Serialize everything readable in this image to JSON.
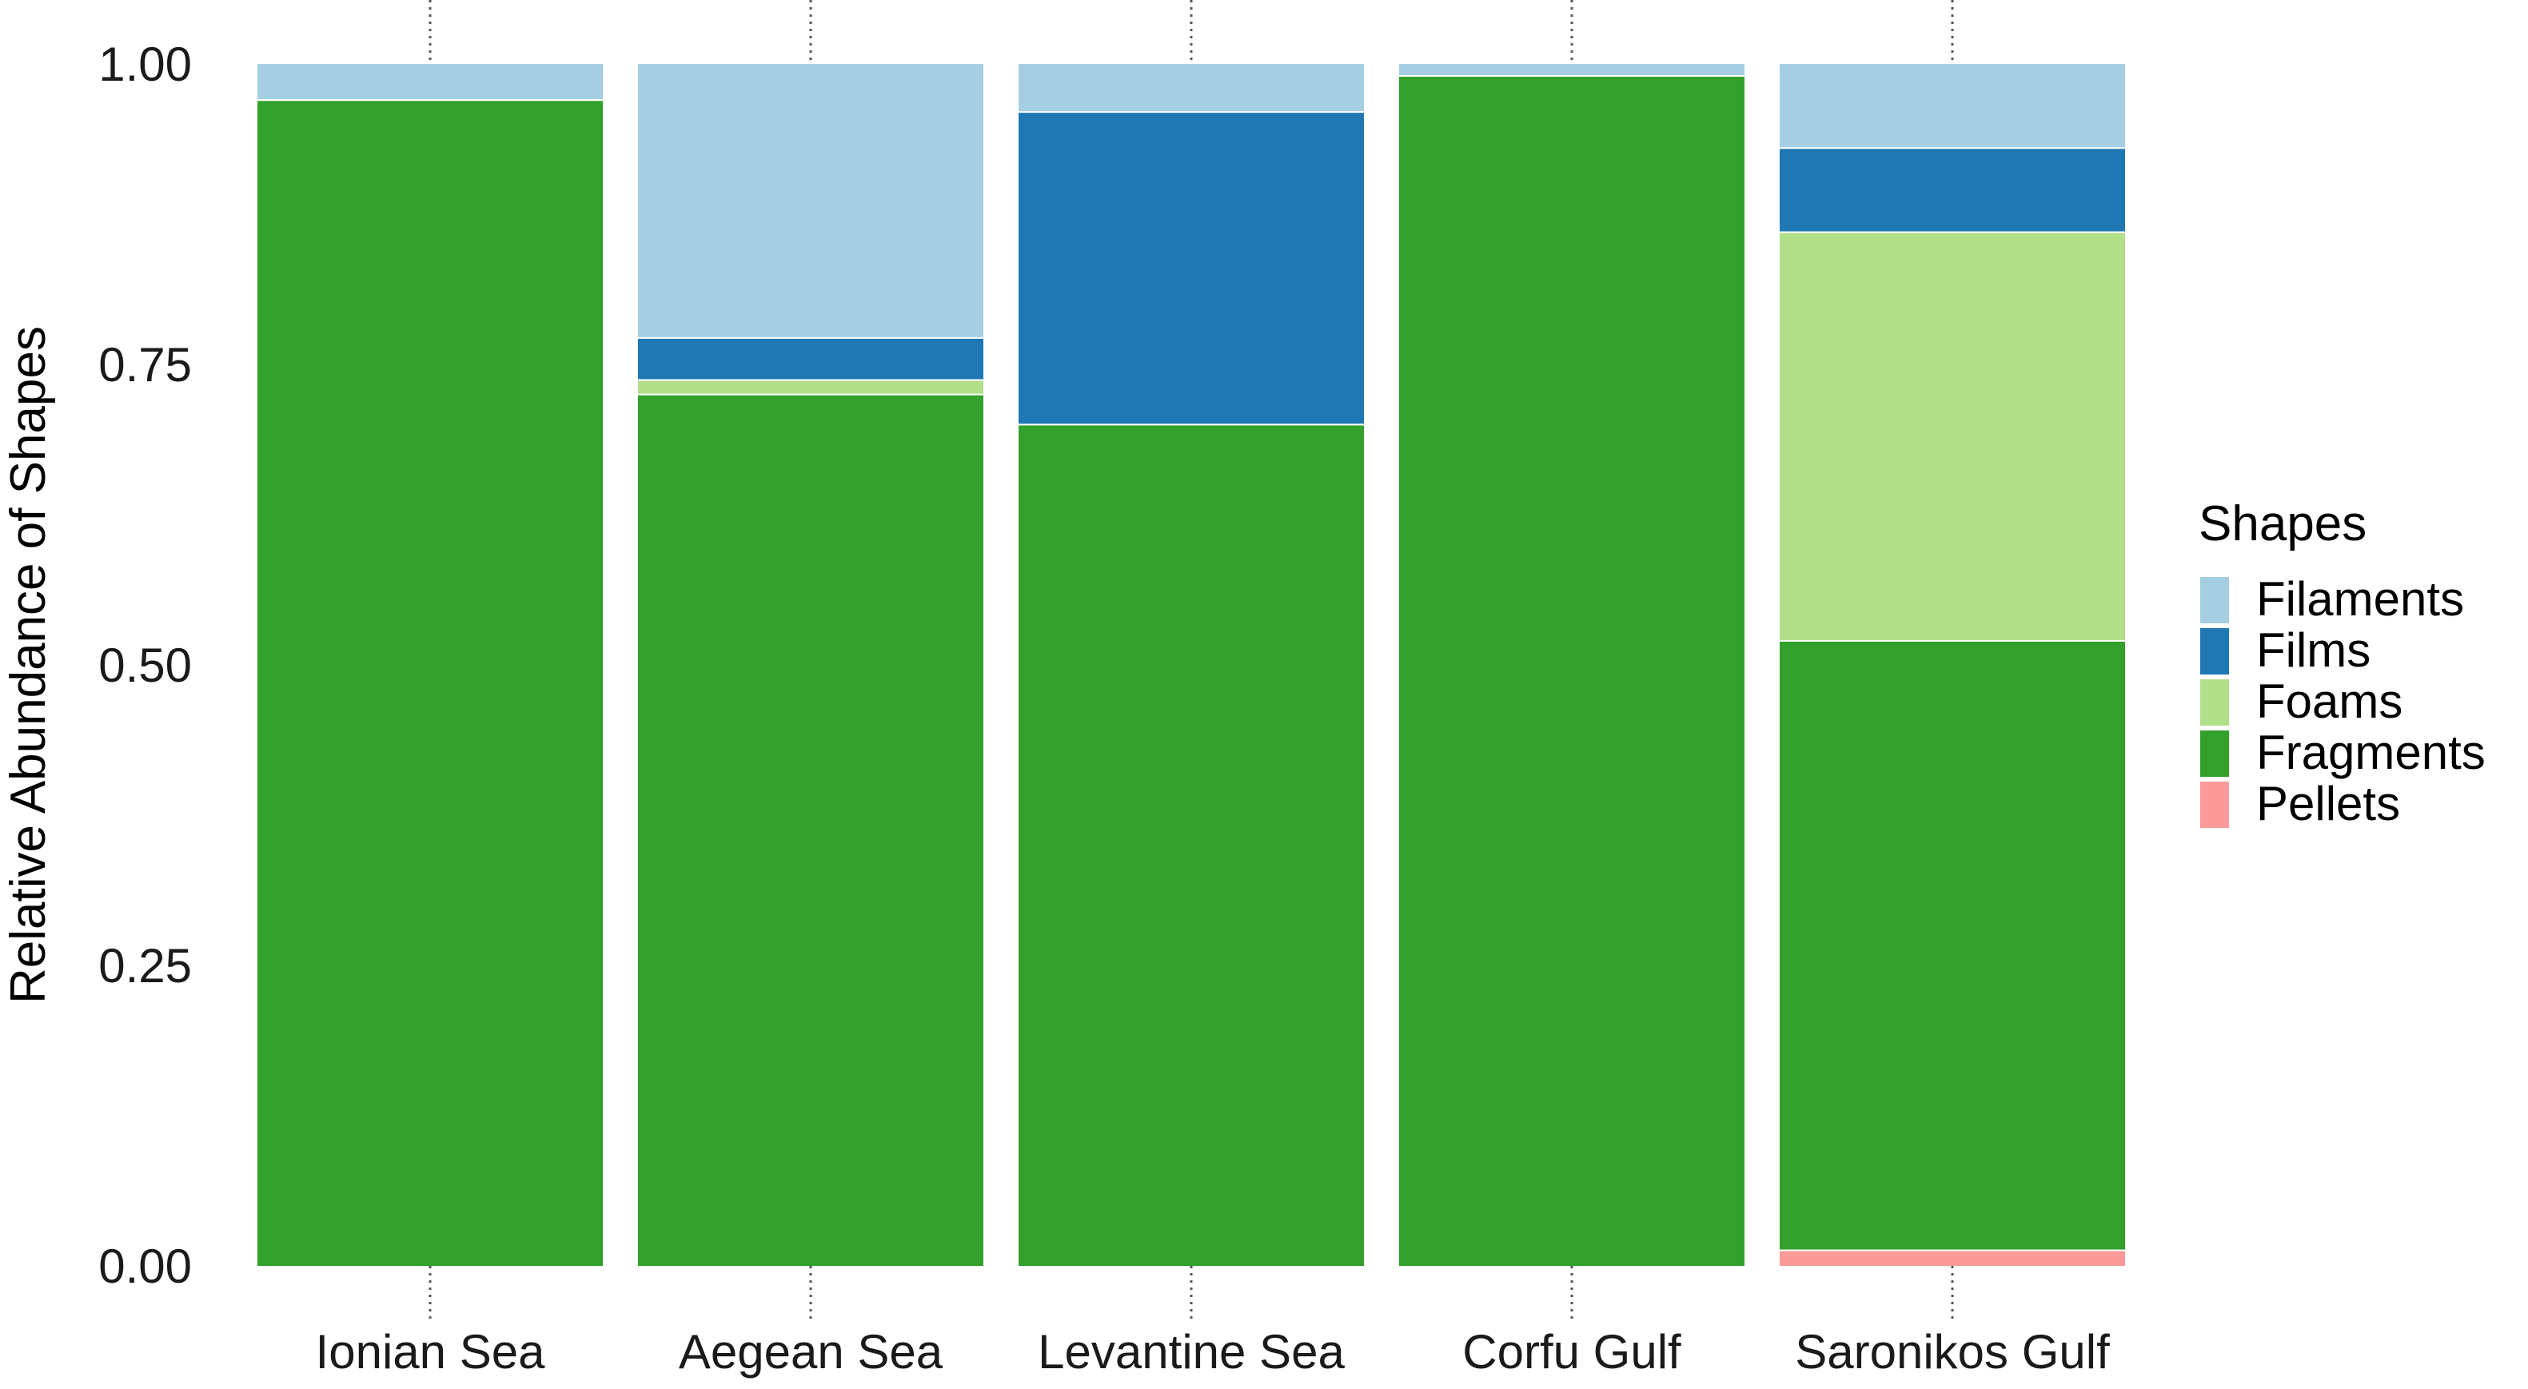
{
  "chart_data": {
    "type": "bar",
    "stacked": true,
    "categories": [
      "Ionian Sea",
      "Aegean Sea",
      "Levantine Sea",
      "Corfu Gulf",
      "Saronikos Gulf"
    ],
    "series": [
      {
        "name": "Pellets",
        "color": "#fb9a99",
        "values": [
          0.0,
          0.0,
          0.0,
          0.0,
          0.013
        ]
      },
      {
        "name": "Fragments",
        "color": "#33a02c",
        "values": [
          0.97,
          0.725,
          0.7,
          0.99,
          0.507
        ]
      },
      {
        "name": "Foams",
        "color": "#b2df8a",
        "values": [
          0.0,
          0.012,
          0.0,
          0.0,
          0.34
        ]
      },
      {
        "name": "Films",
        "color": "#1f78b4",
        "values": [
          0.0,
          0.035,
          0.26,
          0.0,
          0.07
        ]
      },
      {
        "name": "Filaments",
        "color": "#a6cee3",
        "values": [
          0.03,
          0.228,
          0.04,
          0.01,
          0.07
        ]
      }
    ],
    "ylabel": "Relative Abundance of Shapes",
    "xlabel": "",
    "ylim": [
      0,
      1
    ],
    "yticks": [
      "0.00",
      "0.25",
      "0.50",
      "0.75",
      "1.00"
    ],
    "legend": {
      "title": "Shapes",
      "position": "right",
      "entries": [
        "Filaments",
        "Films",
        "Foams",
        "Fragments",
        "Pellets"
      ]
    },
    "grid": false
  }
}
